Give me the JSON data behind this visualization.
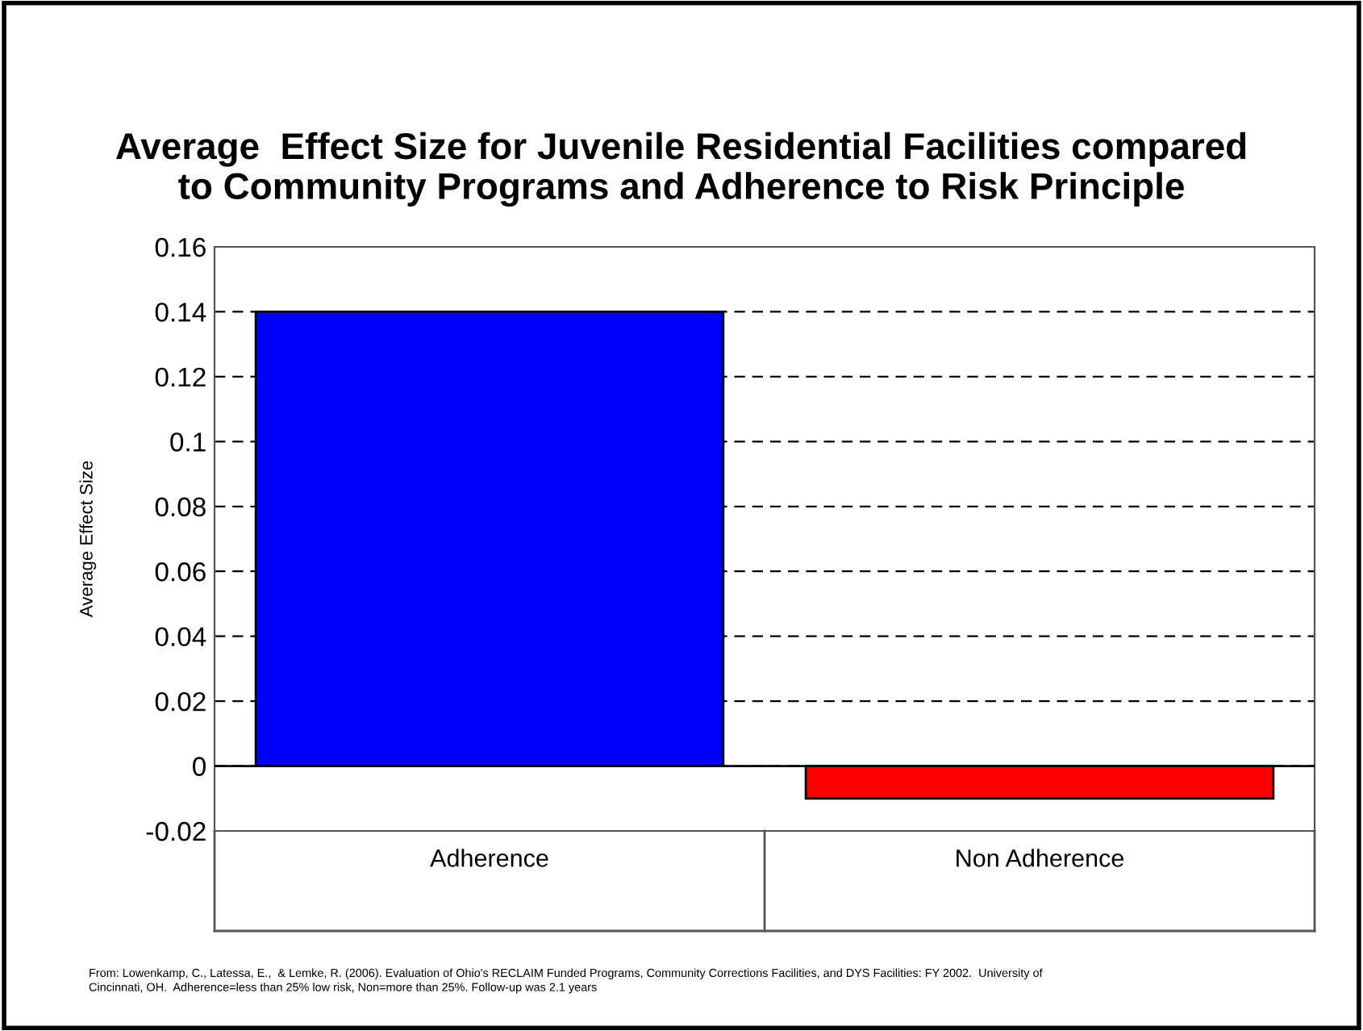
{
  "chart_data": {
    "type": "bar",
    "title": "Average  Effect Size for Juvenile Residential Facilities compared\nto Community Programs and Adherence to Risk Principle",
    "ylabel": "Average Effect Size",
    "categories": [
      "Adherence",
      "Non Adherence"
    ],
    "values": [
      0.14,
      -0.01
    ],
    "colors": [
      "#0000ff",
      "#ff0000"
    ],
    "ylim": [
      -0.02,
      0.16
    ],
    "yticks": [
      -0.02,
      0,
      0.02,
      0.04,
      0.06,
      0.08,
      0.1,
      0.12,
      0.14,
      0.16
    ],
    "grid": "y",
    "annotations": [
      "From: Lowenkamp, C., Latessa, E.,  & Lemke, R. (2006). Evaluation of Ohio's RECLAIM Funded Programs, Community Corrections Facilities, and DYS Facilities: FY 2002.  University of\nCincinnati, OH.  Adherence=less than 25% low risk, Non=more than 25%. Follow-up was 2.1 years"
    ]
  }
}
